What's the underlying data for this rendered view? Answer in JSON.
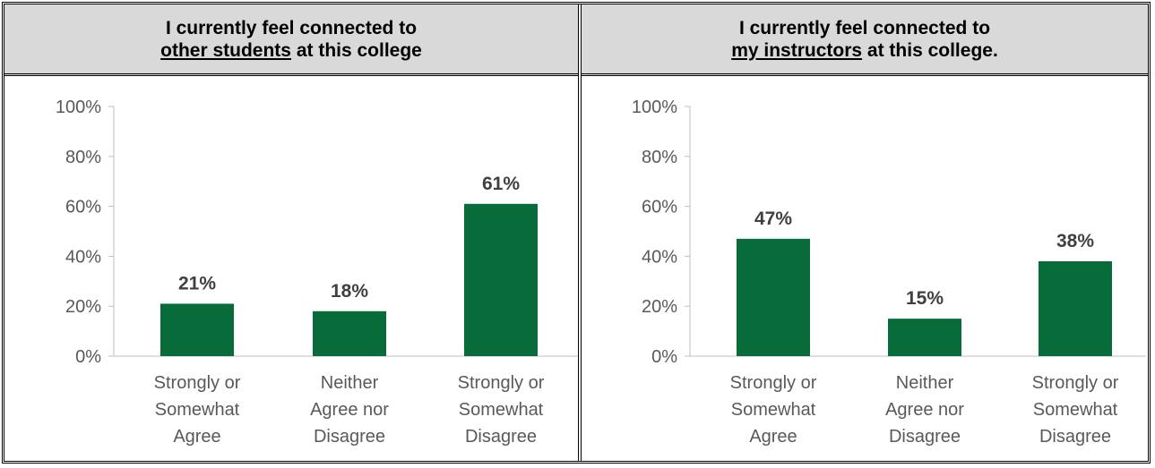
{
  "colors": {
    "bar": "#076b3a",
    "axis": "#bfbfbf",
    "header_bg": "#d9d9d9"
  },
  "panels": [
    {
      "title_line1": "I currently feel connected to",
      "title_line2_underlined": "other students",
      "title_line2_rest": " at this college"
    },
    {
      "title_line1": "I currently feel connected to",
      "title_line2_underlined": "my instructors",
      "title_line2_rest": " at this college."
    }
  ],
  "chart_data": [
    {
      "type": "bar",
      "title": "I currently feel connected to other students at this college",
      "categories": [
        [
          "Strongly or",
          "Somewhat",
          "Agree"
        ],
        [
          "Neither",
          "Agree nor",
          "Disagree"
        ],
        [
          "Strongly or",
          "Somewhat",
          "Disagree"
        ]
      ],
      "values": [
        21,
        18,
        61
      ],
      "data_labels": [
        "21%",
        "18%",
        "61%"
      ],
      "y_ticks": [
        "0%",
        "20%",
        "40%",
        "60%",
        "80%",
        "100%"
      ],
      "ylim": [
        0,
        100
      ],
      "grid": false
    },
    {
      "type": "bar",
      "title": "I currently feel connected to my instructors at this college.",
      "categories": [
        [
          "Strongly or",
          "Somewhat",
          "Agree"
        ],
        [
          "Neither",
          "Agree nor",
          "Disagree"
        ],
        [
          "Strongly or",
          "Somewhat",
          "Disagree"
        ]
      ],
      "values": [
        47,
        15,
        38
      ],
      "data_labels": [
        "47%",
        "15%",
        "38%"
      ],
      "y_ticks": [
        "0%",
        "20%",
        "40%",
        "60%",
        "80%",
        "100%"
      ],
      "ylim": [
        0,
        100
      ],
      "grid": false
    }
  ]
}
